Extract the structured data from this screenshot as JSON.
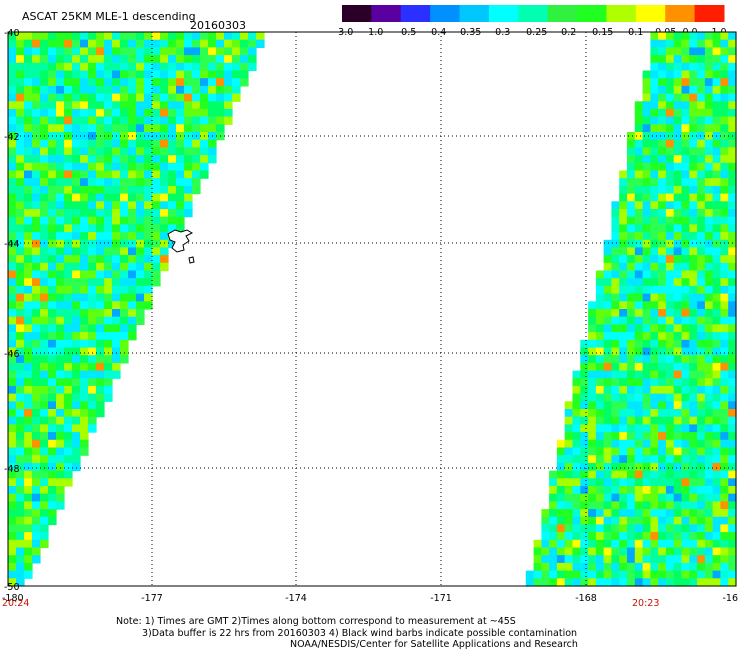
{
  "header": {
    "title": "ASCAT 25KM MLE-1 descending",
    "date": "20160303"
  },
  "colorbar": {
    "tick_labels": [
      "-3.0",
      "-1.0",
      "-0.5",
      "-0.4",
      "-0.35",
      "-0.3",
      "-0.25",
      "-0.2",
      "-0.15",
      "-0.1",
      "-0.05",
      "0.0",
      "1.0"
    ],
    "colors": [
      "#2a0028",
      "#5a00a0",
      "#2a30ff",
      "#0090ff",
      "#00c8ff",
      "#00ffff",
      "#00ffb0",
      "#30f040",
      "#20ff20",
      "#b0ff00",
      "#ffff00",
      "#ff9000",
      "#ff1e00"
    ]
  },
  "map": {
    "lon_labels": [
      "-180",
      "-177",
      "-174",
      "-171",
      "-168",
      "-16"
    ],
    "lat_labels": [
      "-40",
      "-42",
      "-44",
      "-46",
      "-48",
      "-50"
    ],
    "lon_range": [
      -180,
      -165
    ],
    "lat_range": [
      -50,
      -40
    ],
    "grid": true
  },
  "times": {
    "left": "20:24",
    "right": "20:23"
  },
  "notes": {
    "line1": "Note: 1) Times are GMT 2)Times along bottom correspond to measurement at ~45S",
    "line2": "3)Data buffer is 22 hrs from 20160303 4) Black wind barbs indicate possible contamination",
    "line3": "NOAA/NESDIS/Center for Satellite Applications and Research"
  }
}
